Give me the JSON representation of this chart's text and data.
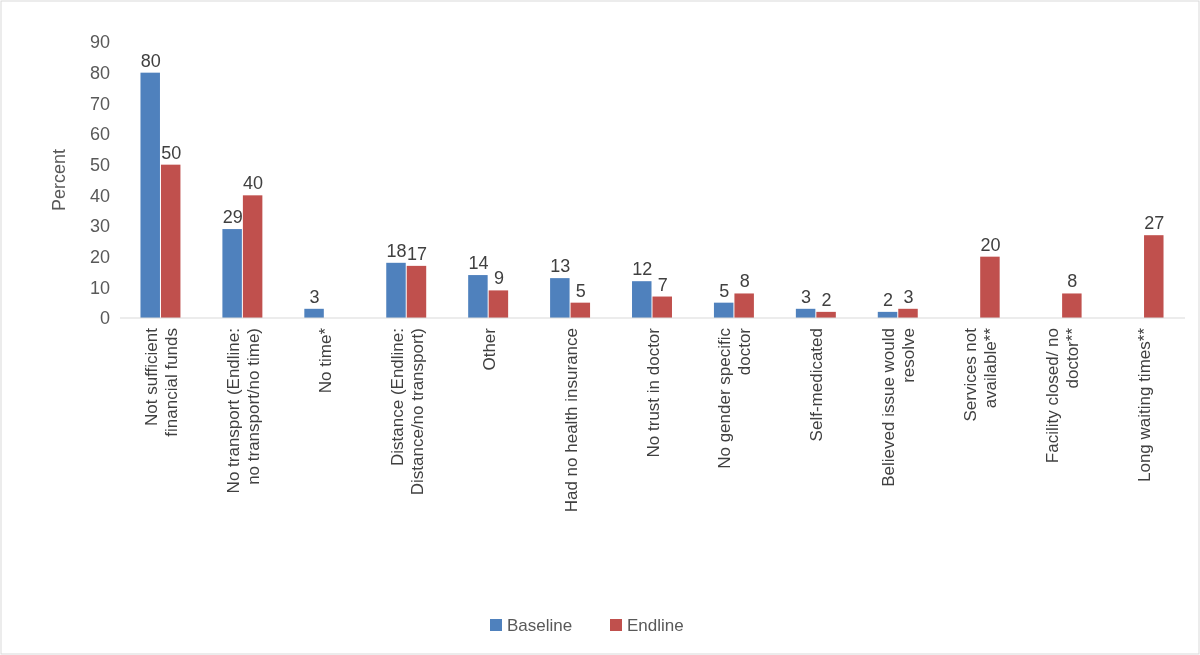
{
  "chart_data": {
    "type": "bar",
    "ylabel": "Percent",
    "categories": [
      "Not sufficient financial funds",
      "No transport (Endline: no transport/no time)",
      "No time*",
      "Distance (Endline: Distance/no transport)",
      "Other",
      "Had no health insurance",
      "No trust in doctor",
      "No gender specific doctor",
      "Self-medicated",
      "Believed issue would resolve",
      "Services not available**",
      "Facility closed/ no doctor**",
      "Long waiting times**"
    ],
    "series": [
      {
        "name": "Baseline",
        "color": "#4f81bd",
        "values": [
          80,
          29,
          3,
          18,
          14,
          13,
          12,
          5,
          3,
          2,
          null,
          null,
          null
        ]
      },
      {
        "name": "Endline",
        "color": "#c0504d",
        "values": [
          50,
          40,
          null,
          17,
          9,
          5,
          7,
          8,
          2,
          3,
          20,
          8,
          27
        ]
      }
    ],
    "ylim": [
      0,
      90
    ],
    "yticks": [
      0,
      10,
      20,
      30,
      40,
      50,
      60,
      70,
      80,
      90
    ],
    "grid": false,
    "legend": "bottom",
    "data_labels": true
  }
}
